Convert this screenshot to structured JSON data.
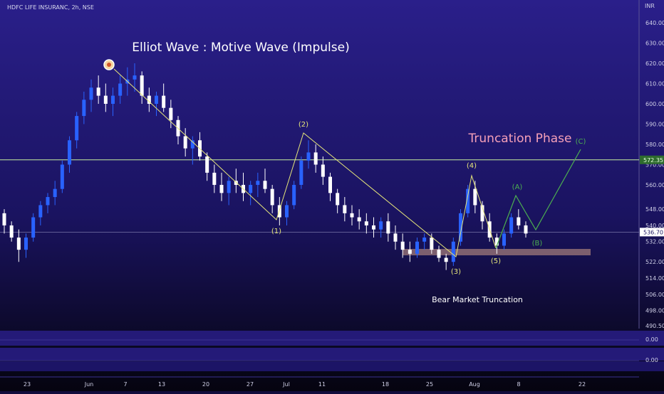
{
  "symbol_header": "HDFC LIFE INSURANC, 2h, NSE",
  "currency": "INR",
  "title": "Elliot Wave : Motive Wave (Impulse)",
  "phase_label": "Truncation Phase",
  "bottom_label": "Bear Market Truncation",
  "colors": {
    "bull": "#2962ff",
    "bear": "#ffffff",
    "wave": "#e6e67a",
    "corrective": "#4caf50",
    "hline": "#c7f0a0",
    "support_zone": "#a07a7a",
    "phase_text": "#f5a0b8"
  },
  "chart_data": {
    "type": "candlestick",
    "ylim": [
      488,
      646
    ],
    "y_ticks": [
      "640.00",
      "630.00",
      "620.00",
      "610.00",
      "600.00",
      "590.00",
      "580.00",
      "570.00",
      "560.00",
      "548.00",
      "540.00",
      "532.00",
      "522.00",
      "514.00",
      "506.00",
      "498.00",
      "490.50"
    ],
    "x_ticks": [
      "23",
      "Jun",
      "7",
      "13",
      "20",
      "27",
      "Jul",
      "11",
      "18",
      "25",
      "Aug",
      "8",
      "22"
    ],
    "price_lines": [
      {
        "label": "572.35",
        "value": 572.35
      },
      {
        "label": "536.70",
        "value": 536.7
      }
    ],
    "waves": [
      {
        "label": "(1)"
      },
      {
        "label": "(2)"
      },
      {
        "label": "(3)"
      },
      {
        "label": "(4)"
      },
      {
        "label": "(5)"
      }
    ],
    "corrective": [
      {
        "label": "(A)"
      },
      {
        "label": "(B)"
      },
      {
        "label": "(C)"
      }
    ],
    "indicator_panes": [
      {
        "label": "0.00"
      },
      {
        "label": "0.00"
      }
    ],
    "candles": [
      [
        546,
        548,
        536,
        540
      ],
      [
        540,
        542,
        532,
        534
      ],
      [
        534,
        538,
        522,
        528
      ],
      [
        528,
        536,
        524,
        534
      ],
      [
        534,
        546,
        532,
        544
      ],
      [
        544,
        552,
        540,
        550
      ],
      [
        550,
        556,
        546,
        554
      ],
      [
        554,
        562,
        550,
        558
      ],
      [
        558,
        572,
        556,
        570
      ],
      [
        570,
        584,
        566,
        582
      ],
      [
        582,
        596,
        578,
        594
      ],
      [
        594,
        606,
        590,
        602
      ],
      [
        602,
        612,
        596,
        608
      ],
      [
        608,
        614,
        600,
        604
      ],
      [
        604,
        610,
        596,
        600
      ],
      [
        600,
        608,
        594,
        604
      ],
      [
        604,
        614,
        600,
        610
      ],
      [
        610,
        618,
        604,
        612
      ],
      [
        612,
        620,
        606,
        614
      ],
      [
        614,
        616,
        600,
        604
      ],
      [
        604,
        608,
        596,
        600
      ],
      [
        600,
        606,
        594,
        604
      ],
      [
        604,
        610,
        596,
        598
      ],
      [
        598,
        602,
        588,
        592
      ],
      [
        592,
        594,
        580,
        584
      ],
      [
        584,
        588,
        574,
        578
      ],
      [
        578,
        584,
        570,
        582
      ],
      [
        582,
        586,
        572,
        574
      ],
      [
        574,
        576,
        562,
        566
      ],
      [
        566,
        570,
        556,
        560
      ],
      [
        560,
        566,
        552,
        556
      ],
      [
        556,
        564,
        550,
        562
      ],
      [
        562,
        568,
        556,
        560
      ],
      [
        560,
        566,
        552,
        556
      ],
      [
        556,
        562,
        550,
        560
      ],
      [
        560,
        566,
        554,
        562
      ],
      [
        562,
        568,
        556,
        558
      ],
      [
        558,
        560,
        546,
        550
      ],
      [
        550,
        554,
        540,
        544
      ],
      [
        544,
        552,
        540,
        550
      ],
      [
        550,
        562,
        548,
        560
      ],
      [
        560,
        574,
        558,
        572
      ],
      [
        572,
        582,
        568,
        576
      ],
      [
        576,
        580,
        566,
        570
      ],
      [
        570,
        574,
        560,
        564
      ],
      [
        564,
        566,
        552,
        556
      ],
      [
        556,
        558,
        546,
        550
      ],
      [
        550,
        554,
        542,
        546
      ],
      [
        546,
        550,
        540,
        544
      ],
      [
        544,
        548,
        538,
        542
      ],
      [
        542,
        546,
        536,
        540
      ],
      [
        540,
        544,
        534,
        538
      ],
      [
        538,
        544,
        534,
        542
      ],
      [
        542,
        546,
        532,
        536
      ],
      [
        536,
        540,
        528,
        532
      ],
      [
        532,
        536,
        524,
        528
      ],
      [
        528,
        532,
        522,
        526
      ],
      [
        526,
        534,
        524,
        532
      ],
      [
        532,
        536,
        528,
        534
      ],
      [
        534,
        536,
        526,
        528
      ],
      [
        528,
        530,
        522,
        524
      ],
      [
        524,
        526,
        518,
        522
      ],
      [
        522,
        534,
        520,
        532
      ],
      [
        532,
        548,
        530,
        546
      ],
      [
        546,
        560,
        544,
        558
      ],
      [
        558,
        562,
        546,
        550
      ],
      [
        550,
        552,
        538,
        542
      ],
      [
        542,
        546,
        532,
        534
      ],
      [
        534,
        536,
        526,
        530
      ],
      [
        530,
        538,
        528,
        536
      ],
      [
        536,
        546,
        534,
        544
      ],
      [
        544,
        548,
        538,
        540
      ],
      [
        540,
        542,
        534,
        536
      ]
    ]
  }
}
